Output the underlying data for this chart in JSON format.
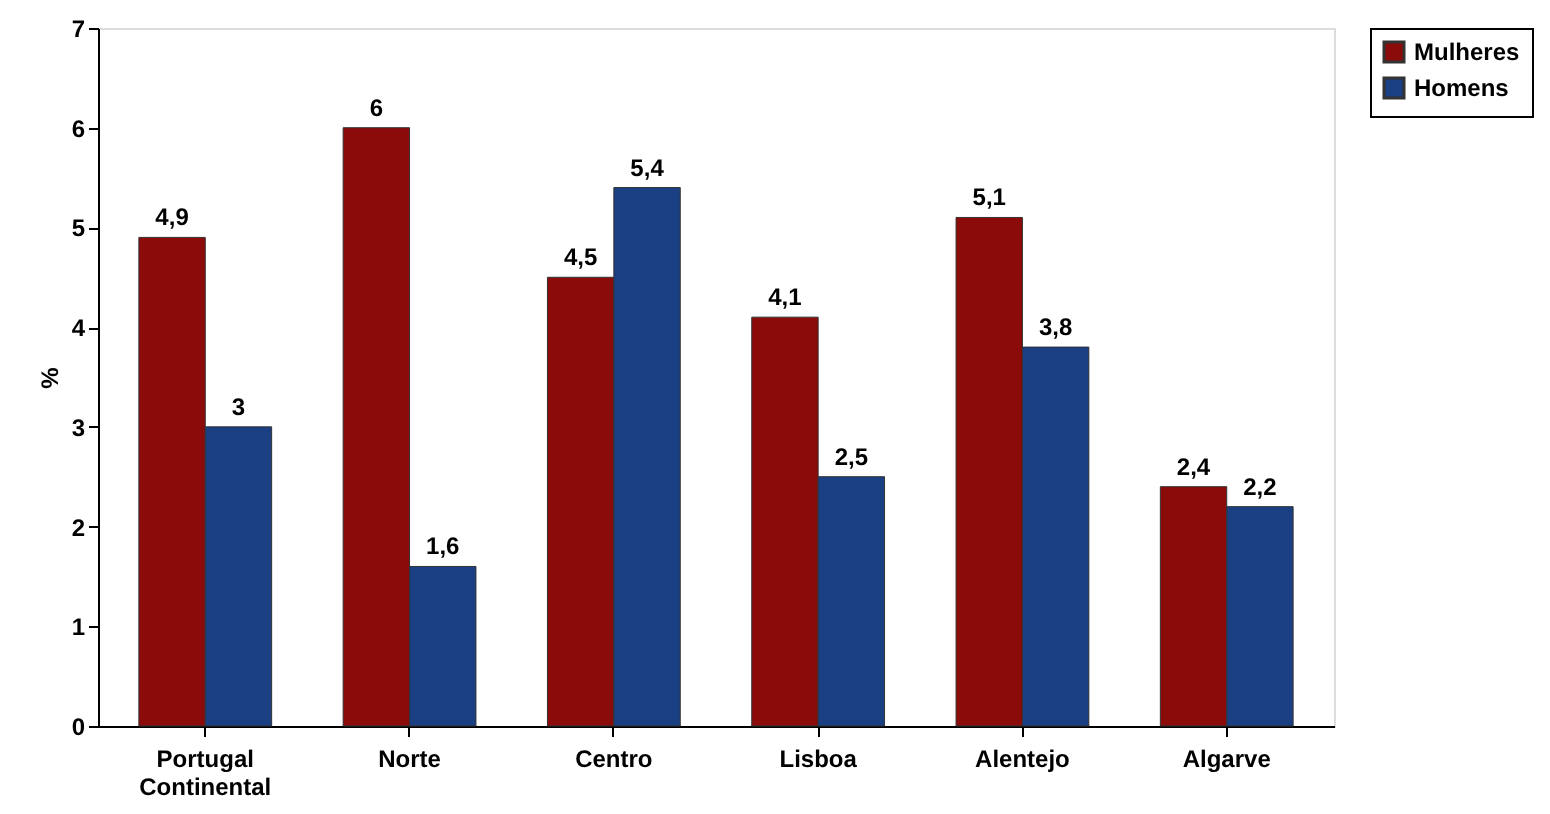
{
  "chart_data": {
    "type": "bar",
    "ylabel": "%",
    "categories": [
      "Portugal Continental",
      "Norte",
      "Centro",
      "Lisboa",
      "Alentejo",
      "Algarve"
    ],
    "series": [
      {
        "name": "Mulheres",
        "color": "#8b0a0a",
        "values": [
          4.9,
          6,
          4.5,
          4.1,
          5.1,
          2.4
        ],
        "value_labels": [
          "4,9",
          "6",
          "4,5",
          "4,1",
          "5,1",
          "2,4"
        ]
      },
      {
        "name": "Homens",
        "color": "#1a3f82",
        "values": [
          3,
          1.6,
          5.4,
          2.5,
          3.8,
          2.2
        ],
        "value_labels": [
          "3",
          "1,6",
          "5,4",
          "2,5",
          "3,8",
          "2,2"
        ]
      }
    ],
    "ylim": [
      0,
      7
    ],
    "yticks": [
      0,
      1,
      2,
      3,
      4,
      5,
      6,
      7
    ],
    "grid": false,
    "legend": "right"
  }
}
